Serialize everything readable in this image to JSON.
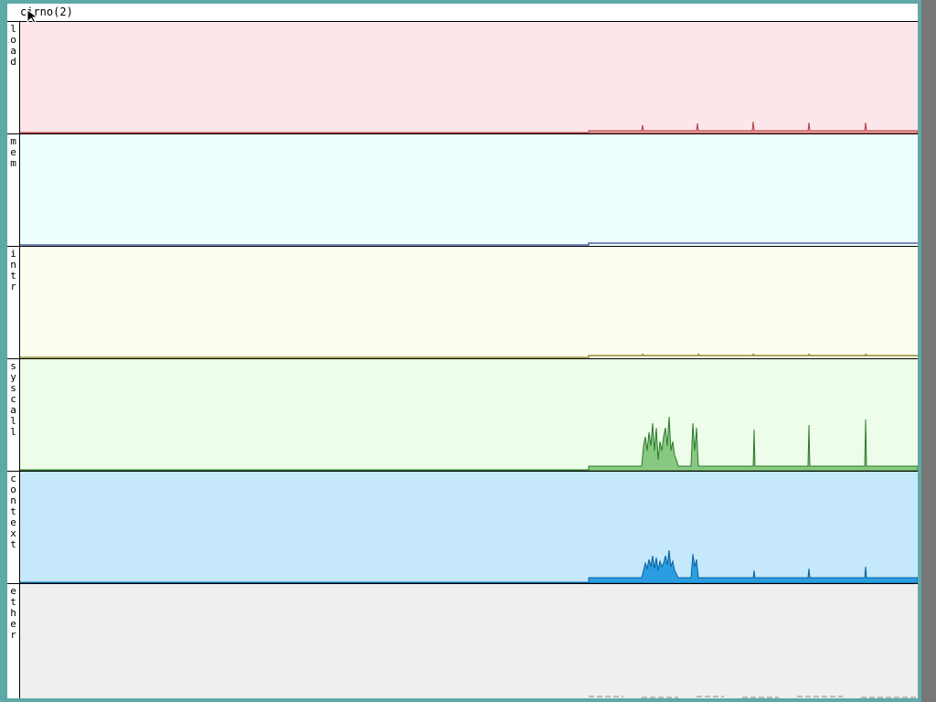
{
  "window": {
    "title": "cirno(2)"
  },
  "panels": [
    {
      "label": "load"
    },
    {
      "label": "mem"
    },
    {
      "label": "intr"
    },
    {
      "label": "syscall"
    },
    {
      "label": "context"
    },
    {
      "label": "ether"
    }
  ]
}
